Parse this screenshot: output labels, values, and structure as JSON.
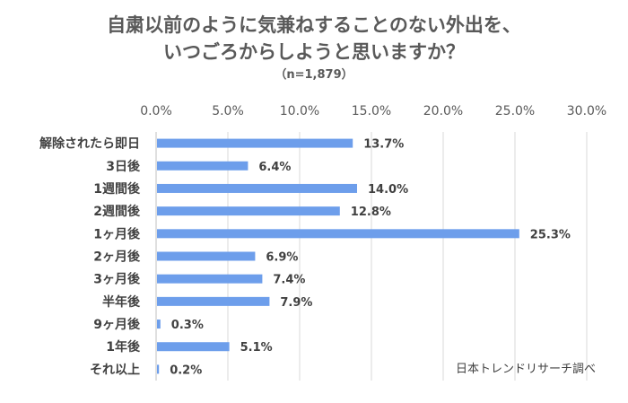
{
  "title_line1": "自粛以前のように気兼ねすることのない外出を、",
  "title_line2": "いつごろからしようと思いますか？",
  "subtitle": "（n=1,879）",
  "source": "日本トレンドリサーチ調べ",
  "colors": {
    "bar": "#6d9eeb",
    "grid": "#d9d9d9",
    "axis": "#bfbfbf"
  },
  "chart_data": {
    "type": "bar",
    "orientation": "horizontal",
    "categories": [
      "解除されたら即日",
      "3日後",
      "1週間後",
      "2週間後",
      "1ヶ月後",
      "2ヶ月後",
      "3ヶ月後",
      "半年後",
      "9ヶ月後",
      "1年後",
      "それ以上"
    ],
    "values": [
      13.7,
      6.4,
      14.0,
      12.8,
      25.3,
      6.9,
      7.4,
      7.9,
      0.3,
      5.1,
      0.2
    ],
    "value_labels": [
      "13.7%",
      "6.4%",
      "14.0%",
      "12.8%",
      "25.3%",
      "6.9%",
      "7.4%",
      "7.9%",
      "0.3%",
      "5.1%",
      "0.2%"
    ],
    "xlim": [
      0,
      30
    ],
    "x_ticks": [
      0,
      5,
      10,
      15,
      20,
      25,
      30
    ],
    "x_tick_labels": [
      "0.0%",
      "5.0%",
      "10.0%",
      "15.0%",
      "20.0%",
      "25.0%",
      "30.0%"
    ],
    "x_axis_position": "top",
    "grid": true,
    "legend": false
  }
}
